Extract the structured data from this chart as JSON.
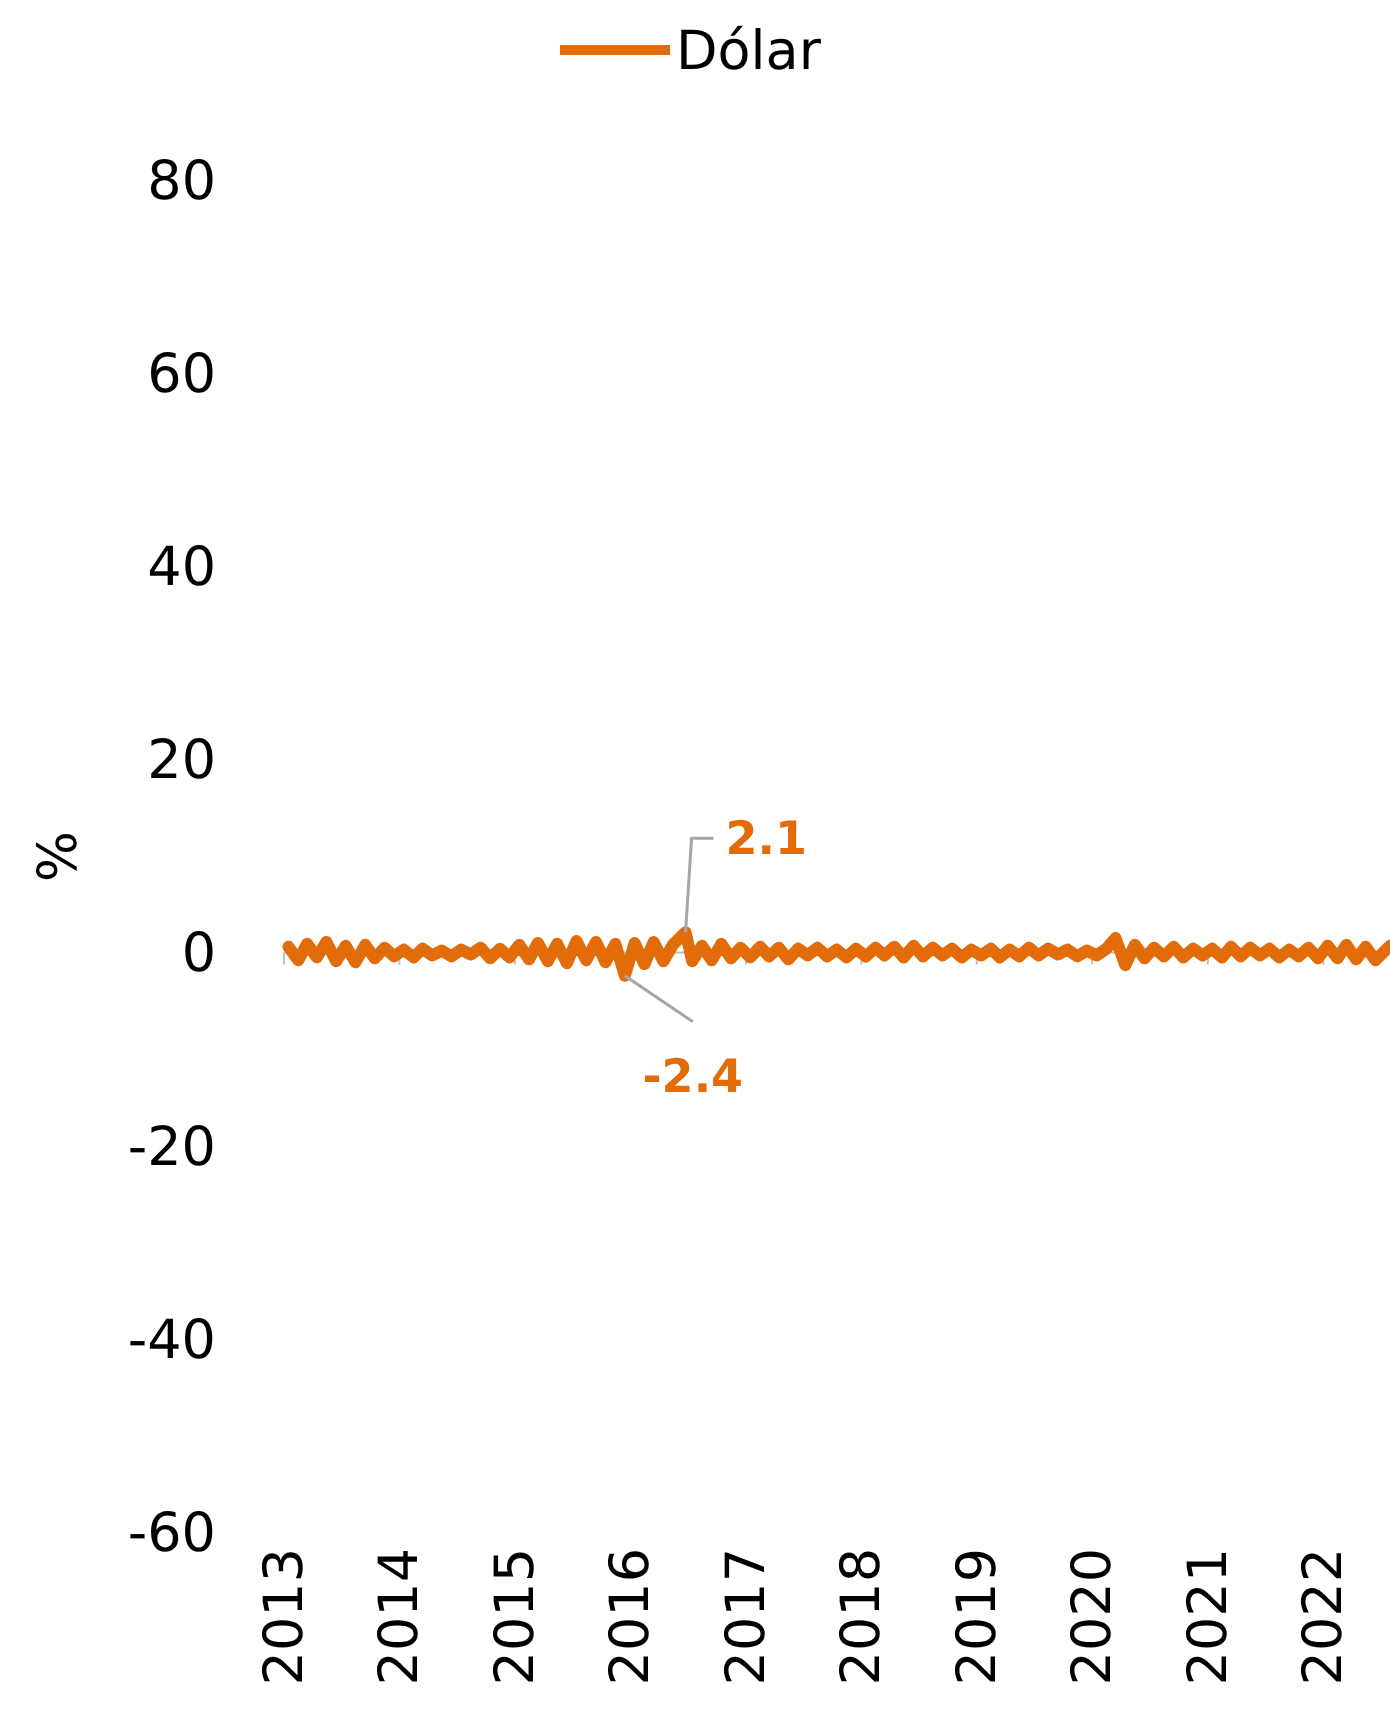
{
  "chart_data": {
    "type": "line",
    "ylabel": "%",
    "ylim": [
      -60,
      80
    ],
    "yticks": [
      -60,
      -40,
      -20,
      0,
      20,
      40,
      60,
      80
    ],
    "xlim": [
      "2013-01-01",
      "2022-07-31"
    ],
    "xticks": [
      {
        "value": "2013-01-01",
        "label": "2013"
      },
      {
        "value": "2014-01-01",
        "label": "2014"
      },
      {
        "value": "2015-01-01",
        "label": "2015"
      },
      {
        "value": "2016-01-01",
        "label": "2016"
      },
      {
        "value": "2017-01-01",
        "label": "2017"
      },
      {
        "value": "2018-01-01",
        "label": "2018"
      },
      {
        "value": "2019-01-01",
        "label": "2019"
      },
      {
        "value": "2020-01-01",
        "label": "2020"
      },
      {
        "value": "2021-01-01",
        "label": "2021"
      },
      {
        "value": "2022-01-01",
        "label": "2022"
      }
    ],
    "legend": "top",
    "marker": "none",
    "line_style": "solid",
    "x": [
      "2013-01-15",
      "2013-02-15",
      "2013-03-15",
      "2013-04-15",
      "2013-05-15",
      "2013-06-15",
      "2013-07-15",
      "2013-08-15",
      "2013-09-15",
      "2013-10-15",
      "2013-11-15",
      "2013-12-15",
      "2014-01-15",
      "2014-02-15",
      "2014-03-15",
      "2014-04-15",
      "2014-05-15",
      "2014-06-15",
      "2014-07-15",
      "2014-08-15",
      "2014-09-15",
      "2014-10-15",
      "2014-11-15",
      "2014-12-15",
      "2015-01-15",
      "2015-02-15",
      "2015-03-15",
      "2015-04-15",
      "2015-05-15",
      "2015-06-15",
      "2015-07-15",
      "2015-08-15",
      "2015-09-15",
      "2015-10-15",
      "2015-11-15",
      "2015-12-15",
      "2016-01-15",
      "2016-02-15",
      "2016-03-15",
      "2016-04-15",
      "2016-05-15",
      "2016-06-24",
      "2016-07-15",
      "2016-08-15",
      "2016-09-15",
      "2016-10-15",
      "2016-11-15",
      "2016-12-15",
      "2017-01-15",
      "2017-02-15",
      "2017-03-15",
      "2017-04-15",
      "2017-05-15",
      "2017-06-15",
      "2017-07-15",
      "2017-08-15",
      "2017-09-15",
      "2017-10-15",
      "2017-11-15",
      "2017-12-15",
      "2018-01-15",
      "2018-02-15",
      "2018-03-15",
      "2018-04-15",
      "2018-05-15",
      "2018-06-15",
      "2018-07-15",
      "2018-08-15",
      "2018-09-15",
      "2018-10-15",
      "2018-11-15",
      "2018-12-15",
      "2019-01-15",
      "2019-02-15",
      "2019-03-15",
      "2019-04-15",
      "2019-05-15",
      "2019-06-15",
      "2019-07-15",
      "2019-08-15",
      "2019-09-15",
      "2019-10-15",
      "2019-11-15",
      "2019-12-15",
      "2020-01-15",
      "2020-02-15",
      "2020-03-15",
      "2020-04-15",
      "2020-05-15",
      "2020-06-15",
      "2020-07-15",
      "2020-08-15",
      "2020-09-15",
      "2020-10-15",
      "2020-11-15",
      "2020-12-15",
      "2021-01-15",
      "2021-02-15",
      "2021-03-15",
      "2021-04-15",
      "2021-05-15",
      "2021-06-15",
      "2021-07-15",
      "2021-08-15",
      "2021-09-15",
      "2021-10-15",
      "2021-11-15",
      "2021-12-15",
      "2022-01-15",
      "2022-02-15",
      "2022-03-15",
      "2022-04-15",
      "2022-05-15",
      "2022-06-15",
      "2022-07-31"
    ],
    "series": [
      {
        "name": "Dólar",
        "color": "#e36c0a",
        "values": [
          0.6,
          -0.8,
          0.9,
          -0.5,
          1.1,
          -0.9,
          0.7,
          -1.0,
          0.8,
          -0.6,
          0.5,
          -0.4,
          0.3,
          -0.5,
          0.4,
          -0.3,
          0.2,
          -0.4,
          0.3,
          -0.2,
          0.5,
          -0.6,
          0.4,
          -0.5,
          0.8,
          -0.7,
          1.0,
          -0.9,
          0.9,
          -1.1,
          1.2,
          -0.8,
          1.1,
          -1.0,
          0.9,
          -2.4,
          1.0,
          -1.2,
          1.1,
          -0.9,
          0.8,
          2.1,
          -0.9,
          0.7,
          -0.8,
          0.9,
          -0.6,
          0.5,
          -0.5,
          0.6,
          -0.4,
          0.5,
          -0.7,
          0.4,
          -0.3,
          0.5,
          -0.4,
          0.3,
          -0.5,
          0.4,
          -0.4,
          0.5,
          -0.3,
          0.6,
          -0.5,
          0.7,
          -0.4,
          0.5,
          -0.3,
          0.4,
          -0.5,
          0.3,
          -0.3,
          0.4,
          -0.5,
          0.3,
          -0.4,
          0.5,
          -0.3,
          0.4,
          -0.2,
          0.3,
          -0.4,
          0.2,
          -0.3,
          0.4,
          1.5,
          -1.3,
          0.8,
          -0.6,
          0.5,
          -0.4,
          0.6,
          -0.5,
          0.4,
          -0.3,
          0.4,
          -0.5,
          0.6,
          -0.4,
          0.5,
          -0.3,
          0.4,
          -0.5,
          0.3,
          -0.4,
          0.5,
          -0.6,
          0.7,
          -0.6,
          0.8,
          -0.7,
          0.6,
          -0.8,
          0.7
        ]
      }
    ],
    "annotations": [
      {
        "text": "2.1",
        "x": "2016-06-24",
        "y": 2.1
      },
      {
        "text": "-2.4",
        "x": "2015-12-15",
        "y": -2.4
      }
    ]
  }
}
